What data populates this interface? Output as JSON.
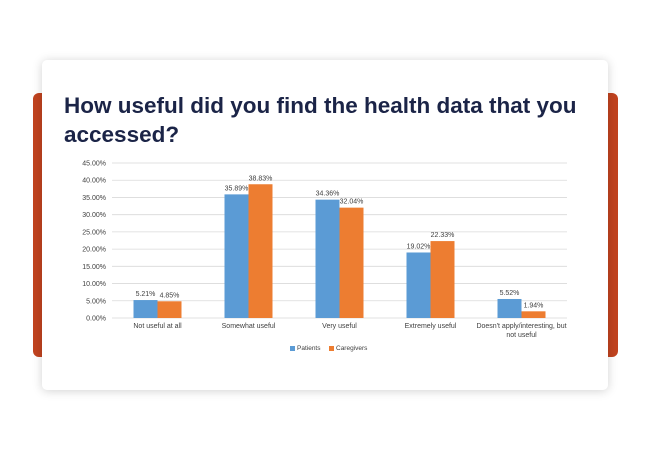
{
  "colors": {
    "accent_band": "#c1431f",
    "patients": "#5b9bd5",
    "caregivers": "#ed7d31",
    "gridline": "#d9d9d9",
    "title": "#1b2447"
  },
  "title": "How useful did you find the health data that you accessed?",
  "chart_data": {
    "type": "bar",
    "title": "How useful did you find the health data that you accessed?",
    "xlabel": "",
    "ylabel": "",
    "ylim": [
      0,
      45
    ],
    "yticks": [
      "0.00%",
      "5.00%",
      "10.00%",
      "15.00%",
      "20.00%",
      "25.00%",
      "30.00%",
      "35.00%",
      "40.00%",
      "45.00%"
    ],
    "grid": true,
    "legend_position": "bottom",
    "categories": [
      [
        "Not useful at all"
      ],
      [
        "Somewhat useful"
      ],
      [
        "Very useful"
      ],
      [
        "Extremely useful"
      ],
      [
        "Doesn't apply/interesting, but",
        "not useful"
      ]
    ],
    "series": [
      {
        "name": "Patients",
        "color": "#5b9bd5",
        "values": [
          5.21,
          35.89,
          34.36,
          19.02,
          5.52
        ],
        "labels": [
          "5.21%",
          "35.89%",
          "34.36%",
          "19.02%",
          "5.52%"
        ]
      },
      {
        "name": "Caregivers",
        "color": "#ed7d31",
        "values": [
          4.85,
          38.83,
          32.04,
          22.33,
          1.94
        ],
        "labels": [
          "4.85%",
          "38.83%",
          "32.04%",
          "22.33%",
          "1.94%"
        ]
      }
    ]
  }
}
